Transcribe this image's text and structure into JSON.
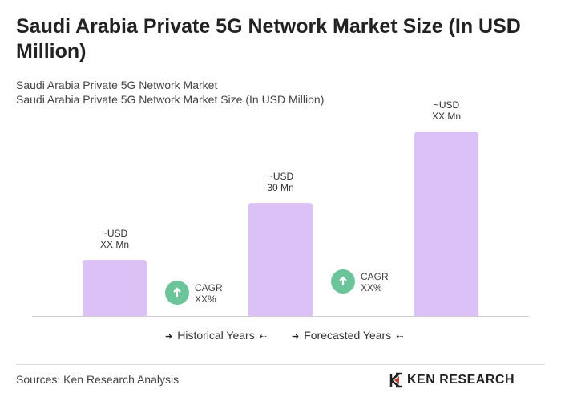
{
  "chart_data": {
    "type": "bar",
    "title": "Saudi Arabia Private 5G Network Market Size (In USD Million)",
    "subtitle": [
      "Saudi Arabia Private 5G Network Market",
      "Saudi Arabia Private 5G Network Market Size (In USD Million)"
    ],
    "values": [
      15,
      30,
      49
    ],
    "value_labels": [
      "~USD XX Mn",
      "~USD 30 Mn",
      "~USD XX Mn"
    ],
    "color": "#dcc1f6",
    "annotations": [
      "CAGR XX%",
      "CAGR XX%"
    ],
    "legend": [
      "Historical Years",
      "Forecasted Years"
    ],
    "source": "Sources: Ken Research Analysis",
    "brand": "KEN RESEARCH"
  }
}
